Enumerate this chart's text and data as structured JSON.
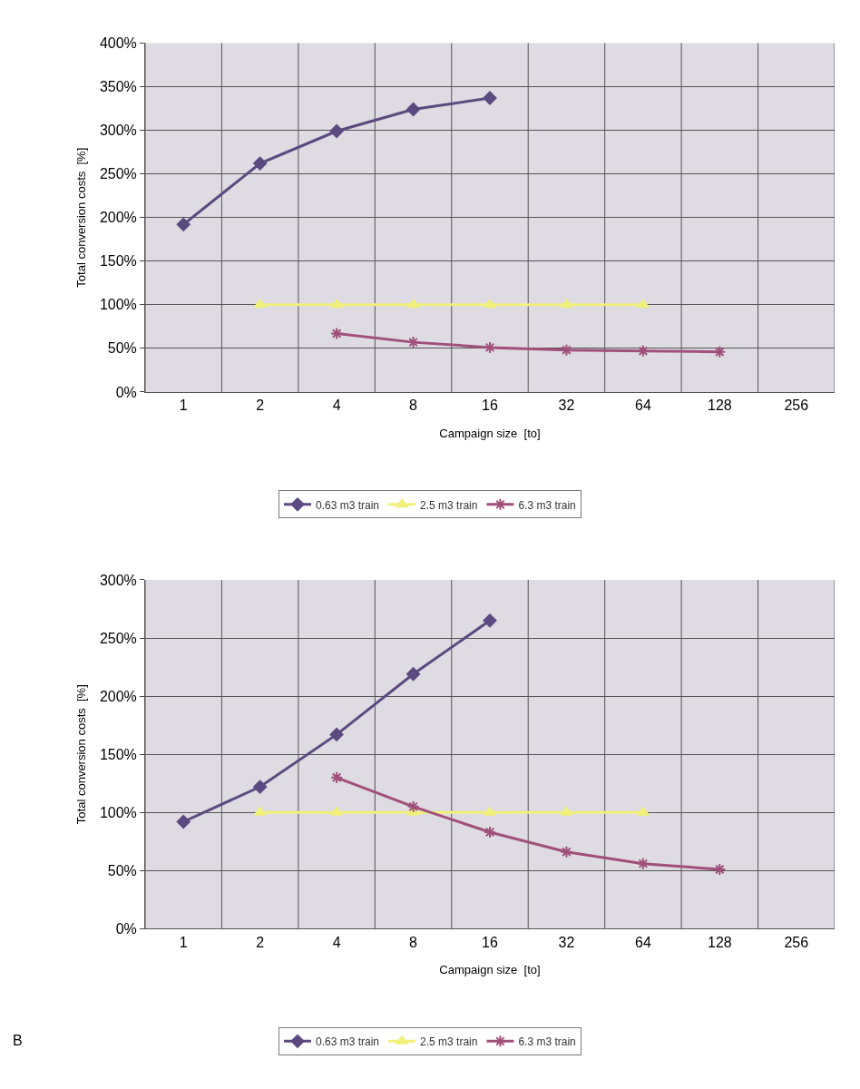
{
  "chart_data": [
    {
      "type": "line",
      "xlabel": "Campaign size  [to]",
      "ylabel": "Total conversion costs  [%]",
      "categories": [
        "1",
        "2",
        "4",
        "8",
        "16",
        "32",
        "64",
        "128",
        "256"
      ],
      "ylim": [
        0,
        400
      ],
      "yticks": [
        {
          "value": 0,
          "label": "0%"
        },
        {
          "value": 50,
          "label": "50%"
        },
        {
          "value": 100,
          "label": "100%"
        },
        {
          "value": 150,
          "label": "150%"
        },
        {
          "value": 200,
          "label": "200%"
        },
        {
          "value": 250,
          "label": "250%"
        },
        {
          "value": 300,
          "label": "300%"
        },
        {
          "value": 350,
          "label": "350%"
        },
        {
          "value": 400,
          "label": "400%"
        }
      ],
      "grid": true,
      "legend": "bottom",
      "series": [
        {
          "name": "0.63 m3 train",
          "color": "#5a4a80",
          "marker": "diamond",
          "values": [
            192,
            262,
            299,
            324,
            337,
            null,
            null,
            null,
            null
          ]
        },
        {
          "name": "2.5 m3 train",
          "color": "#f0f07a",
          "marker": "triangle",
          "values": [
            null,
            100,
            100,
            100,
            100,
            100,
            100,
            null,
            null
          ]
        },
        {
          "name": "6.3 m3 train",
          "color": "#a0507a",
          "marker": "cross",
          "values": [
            null,
            null,
            67,
            57,
            51,
            48,
            47,
            46,
            null
          ]
        }
      ]
    },
    {
      "type": "line",
      "xlabel": "Campaign size  [to]",
      "ylabel": "Total conversion costs  [%]",
      "categories": [
        "1",
        "2",
        "4",
        "8",
        "16",
        "32",
        "64",
        "128",
        "256"
      ],
      "ylim": [
        0,
        300
      ],
      "yticks": [
        {
          "value": 0,
          "label": "0%"
        },
        {
          "value": 50,
          "label": "50%"
        },
        {
          "value": 100,
          "label": "100%"
        },
        {
          "value": 150,
          "label": "150%"
        },
        {
          "value": 200,
          "label": "200%"
        },
        {
          "value": 250,
          "label": "250%"
        },
        {
          "value": 300,
          "label": "300%"
        }
      ],
      "grid": true,
      "legend": "bottom",
      "annotations": [
        "B"
      ],
      "series": [
        {
          "name": "0.63 m3 train",
          "color": "#5a4a80",
          "marker": "diamond",
          "values": [
            92,
            122,
            167,
            219,
            265,
            null,
            null,
            null,
            null
          ]
        },
        {
          "name": "2.5 m3 train",
          "color": "#f0f07a",
          "marker": "triangle",
          "values": [
            null,
            100,
            100,
            100,
            100,
            100,
            100,
            null,
            null
          ]
        },
        {
          "name": "6.3 m3 train",
          "color": "#a0507a",
          "marker": "cross",
          "values": [
            null,
            null,
            130,
            105,
            83,
            66,
            56,
            51,
            null
          ]
        }
      ]
    }
  ]
}
